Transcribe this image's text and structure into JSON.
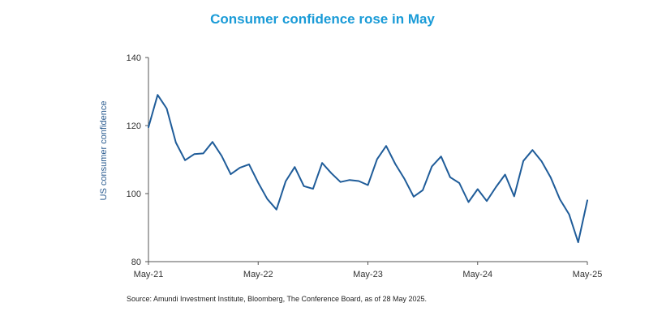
{
  "chart_data": {
    "type": "line",
    "title": "Consumer confidence rose in May",
    "xlabel": "",
    "ylabel": "US consumer confidence",
    "ylim": [
      80,
      140
    ],
    "yticks": [
      80,
      100,
      120,
      140
    ],
    "xlim": [
      0,
      48
    ],
    "xticks": [
      {
        "label": "May-21",
        "index": 0
      },
      {
        "label": "May-22",
        "index": 12
      },
      {
        "label": "May-23",
        "index": 24
      },
      {
        "label": "May-24",
        "index": 36
      },
      {
        "label": "May-25",
        "index": 48
      }
    ],
    "grid": false,
    "line_color": "#1f5c99",
    "series": [
      {
        "name": "US consumer confidence",
        "x": [
          "May-21",
          "Jun-21",
          "Jul-21",
          "Aug-21",
          "Sep-21",
          "Oct-21",
          "Nov-21",
          "Dec-21",
          "Jan-22",
          "Feb-22",
          "Mar-22",
          "Apr-22",
          "May-22",
          "Jun-22",
          "Jul-22",
          "Aug-22",
          "Sep-22",
          "Oct-22",
          "Nov-22",
          "Dec-22",
          "Jan-23",
          "Feb-23",
          "Mar-23",
          "Apr-23",
          "May-23",
          "Jun-23",
          "Jul-23",
          "Aug-23",
          "Sep-23",
          "Oct-23",
          "Nov-23",
          "Dec-23",
          "Jan-24",
          "Feb-24",
          "Mar-24",
          "Apr-24",
          "May-24",
          "Jun-24",
          "Jul-24",
          "Aug-24",
          "Sep-24",
          "Oct-24",
          "Nov-24",
          "Dec-24",
          "Jan-25",
          "Feb-25",
          "Mar-25",
          "Apr-25",
          "May-25"
        ],
        "values": [
          119.5,
          129.0,
          125.0,
          115.0,
          109.8,
          111.6,
          111.8,
          115.2,
          111.1,
          105.7,
          107.6,
          108.6,
          103.2,
          98.4,
          95.3,
          103.6,
          107.8,
          102.2,
          101.4,
          109.0,
          106.0,
          103.4,
          104.0,
          103.7,
          102.5,
          110.1,
          114.0,
          108.7,
          104.3,
          99.1,
          101.0,
          108.0,
          110.9,
          104.8,
          103.1,
          97.5,
          101.3,
          97.8,
          101.9,
          105.6,
          99.2,
          109.6,
          112.8,
          109.5,
          104.7,
          98.3,
          93.9,
          85.7,
          98.0
        ]
      }
    ]
  },
  "source_note": "Source: Amundi Investment Institute, Bloomberg, The Conference Board, as of 28 May 2025."
}
